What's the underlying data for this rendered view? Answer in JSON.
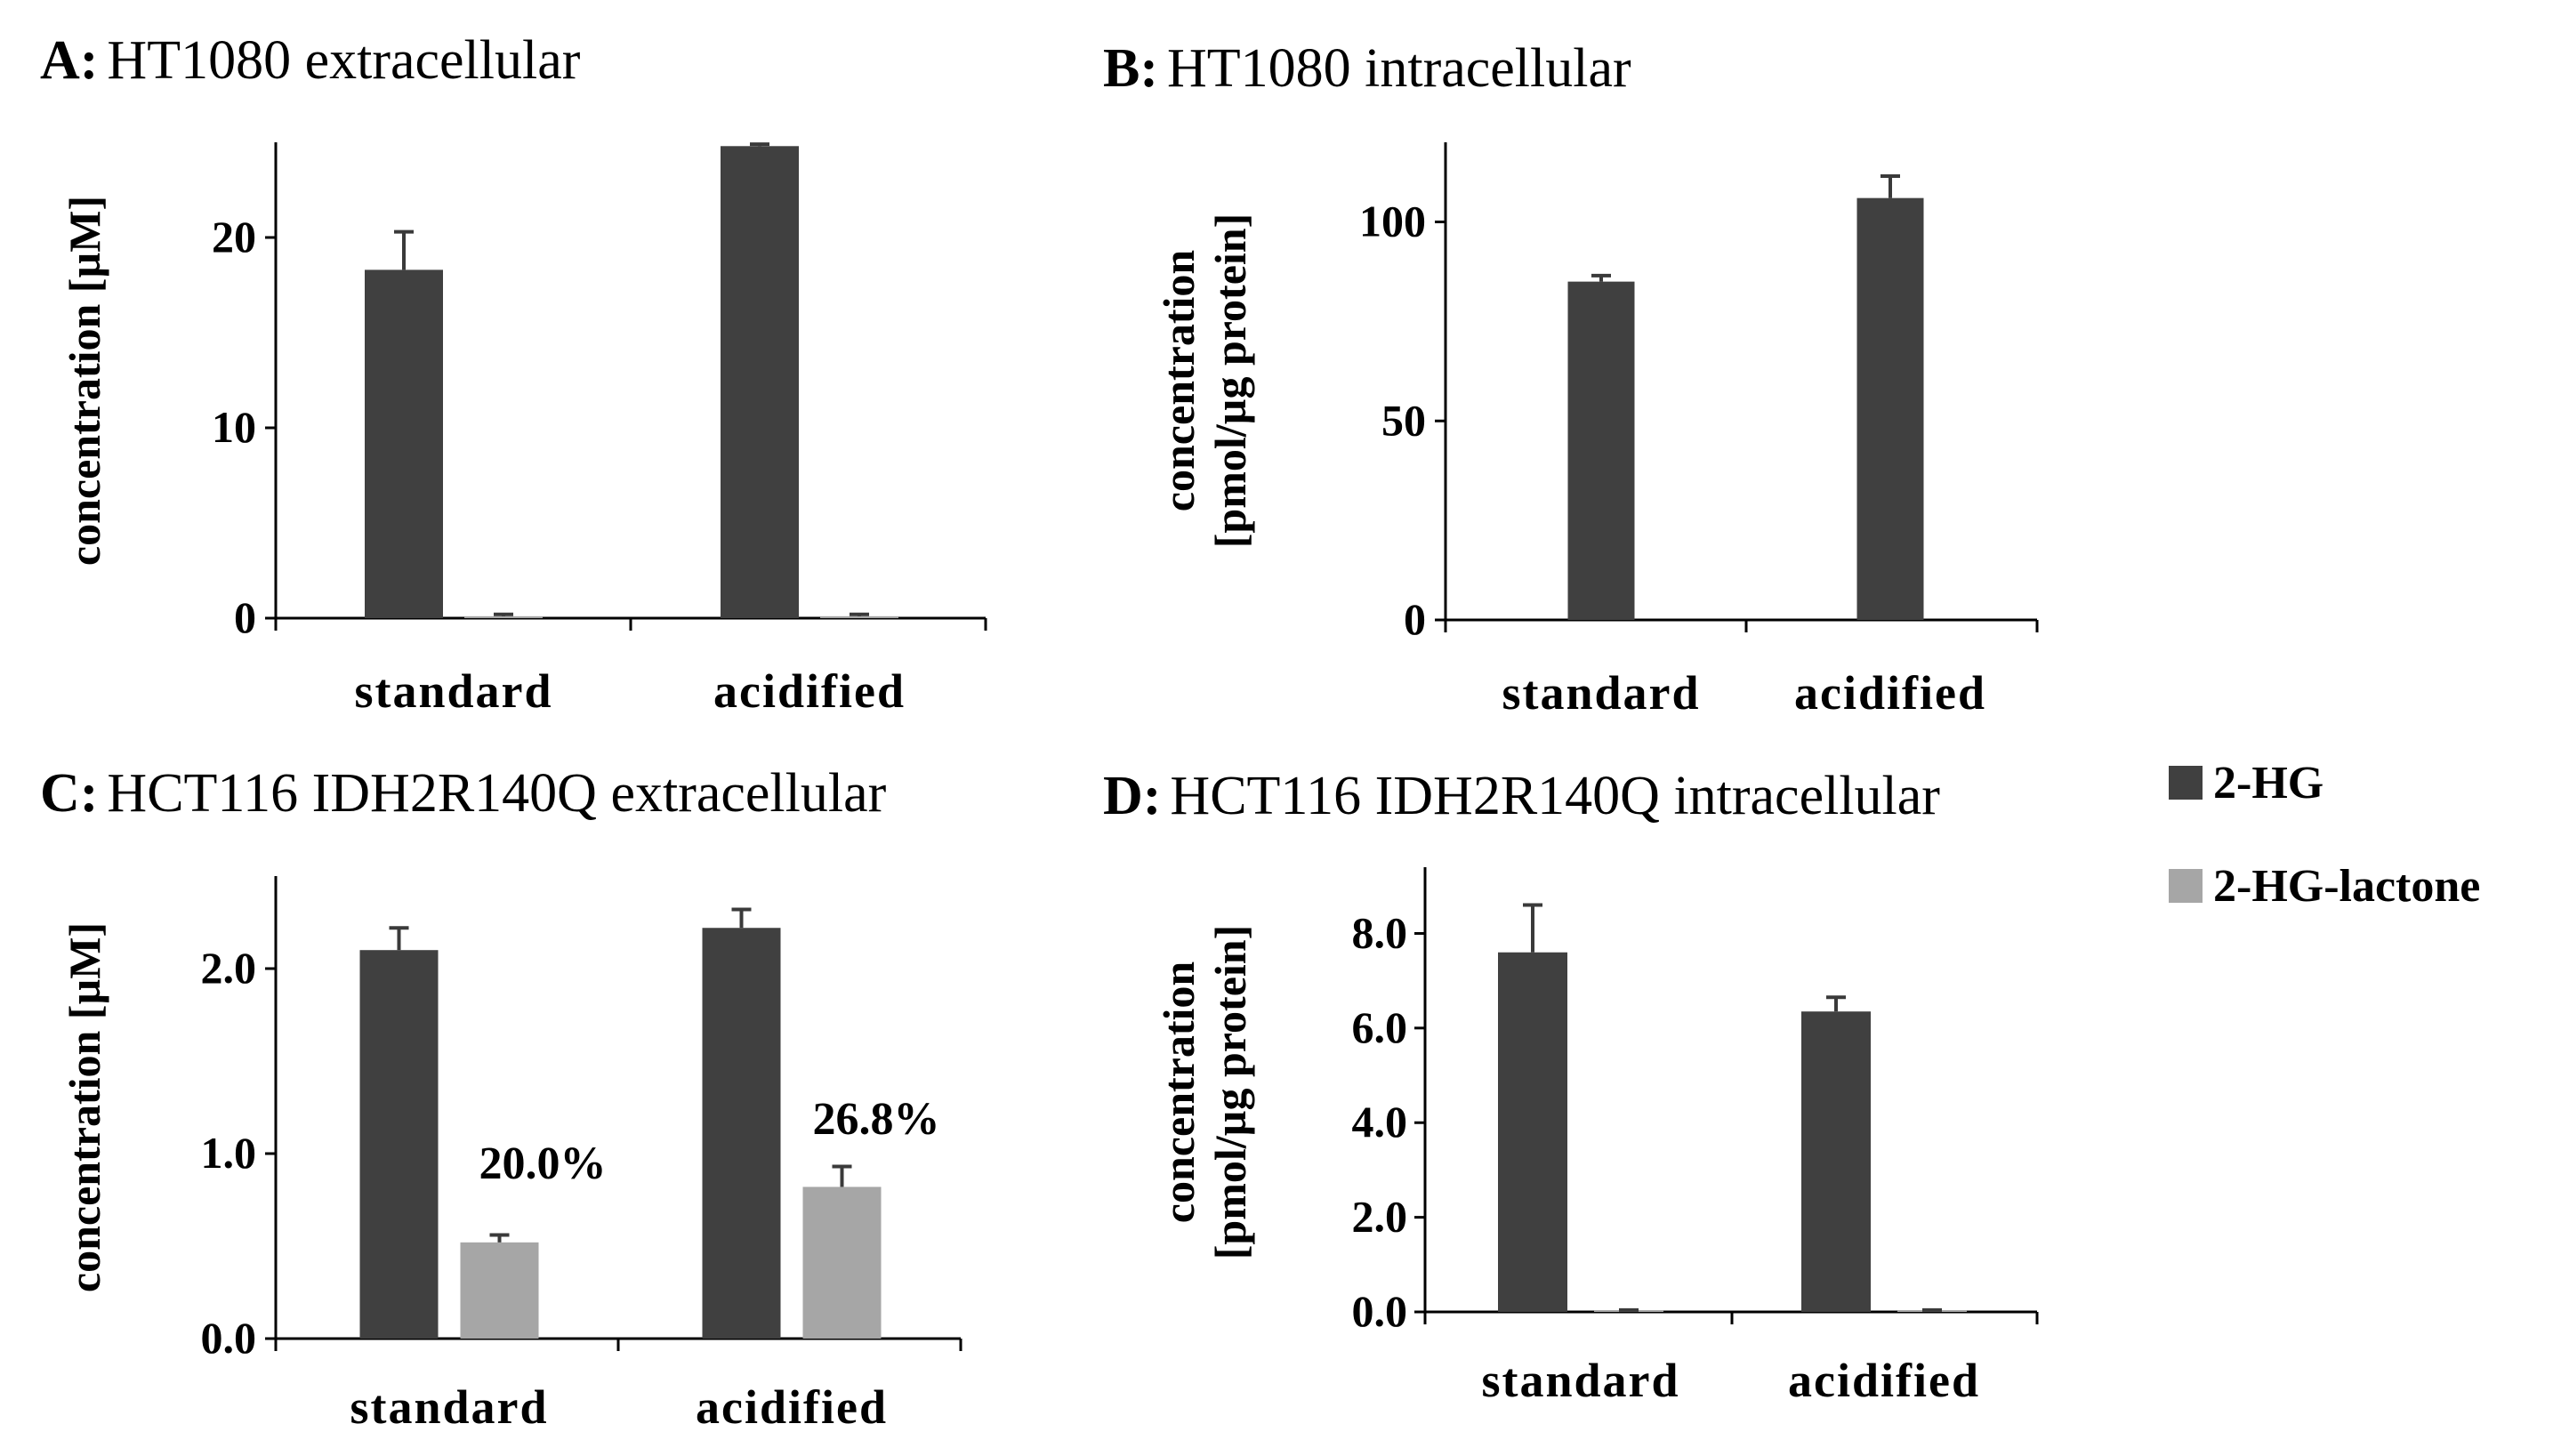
{
  "legend": [
    {
      "name": "2-HG",
      "color": "#404040"
    },
    {
      "name": "2-HG-lactone",
      "color": "#a6a6a6"
    }
  ],
  "chart_data": [
    {
      "type": "bar",
      "panel": "A",
      "title_letter": "A:",
      "title_text": "HT1080 extracellular",
      "ylabel_lines": [
        "concentration [µM]"
      ],
      "ylim": [
        0,
        25
      ],
      "yticks": [
        0,
        10,
        20
      ],
      "ytick_labels": [
        "0",
        "10",
        "20"
      ],
      "categories": [
        "standard",
        "acidified"
      ],
      "series": [
        {
          "name": "2-HG",
          "values": [
            18.3,
            24.8
          ],
          "errors": [
            2.0,
            0.1
          ]
        },
        {
          "name": "2-HG-lactone",
          "values": [
            0.1,
            0.1
          ],
          "errors": [
            0.1,
            0.1
          ]
        }
      ],
      "data_labels": []
    },
    {
      "type": "bar",
      "panel": "B",
      "title_letter": "B:",
      "title_text": "HT1080 intracellular",
      "ylabel_lines": [
        "concentration",
        "[pmol/µg protein]"
      ],
      "ylim": [
        0,
        120
      ],
      "yticks": [
        0,
        50,
        100
      ],
      "ytick_labels": [
        "0",
        "50",
        "100"
      ],
      "categories": [
        "standard",
        "acidified"
      ],
      "series": [
        {
          "name": "2-HG",
          "values": [
            85,
            106
          ],
          "errors": [
            1.5,
            5.5
          ]
        }
      ],
      "data_labels": []
    },
    {
      "type": "bar",
      "panel": "C",
      "title_letter": "C:",
      "title_text": "HCT116 IDH2R140Q extracellular",
      "ylabel_lines": [
        "concentration [µM]"
      ],
      "ylim": [
        0,
        2.5
      ],
      "yticks": [
        0,
        1,
        2
      ],
      "ytick_labels": [
        "0.0",
        "1.0",
        "2.0"
      ],
      "categories": [
        "standard",
        "acidified"
      ],
      "series": [
        {
          "name": "2-HG",
          "values": [
            2.1,
            2.22
          ],
          "errors": [
            0.12,
            0.1
          ]
        },
        {
          "name": "2-HG-lactone",
          "values": [
            0.52,
            0.82
          ],
          "errors": [
            0.04,
            0.11
          ]
        }
      ],
      "data_labels": [
        {
          "category": 0,
          "series": 1,
          "text": "20.0%"
        },
        {
          "category": 1,
          "series": 1,
          "text": "26.8%"
        }
      ]
    },
    {
      "type": "bar",
      "panel": "D",
      "title_letter": "D:",
      "title_text": "HCT116 IDH2R140Q intracellular",
      "ylabel_lines": [
        "concentration",
        "[pmol/µg protein]"
      ],
      "ylim": [
        0,
        9.4
      ],
      "yticks": [
        0,
        2,
        4,
        6,
        8
      ],
      "ytick_labels": [
        "0.0",
        "2.0",
        "4.0",
        "6.0",
        "8.0"
      ],
      "categories": [
        "standard",
        "acidified"
      ],
      "series": [
        {
          "name": "2-HG",
          "values": [
            7.6,
            6.35
          ],
          "errors": [
            1.0,
            0.3
          ]
        },
        {
          "name": "2-HG-lactone",
          "values": [
            0.02,
            0.02
          ],
          "errors": [
            0.02,
            0.02
          ]
        }
      ],
      "data_labels": []
    }
  ]
}
